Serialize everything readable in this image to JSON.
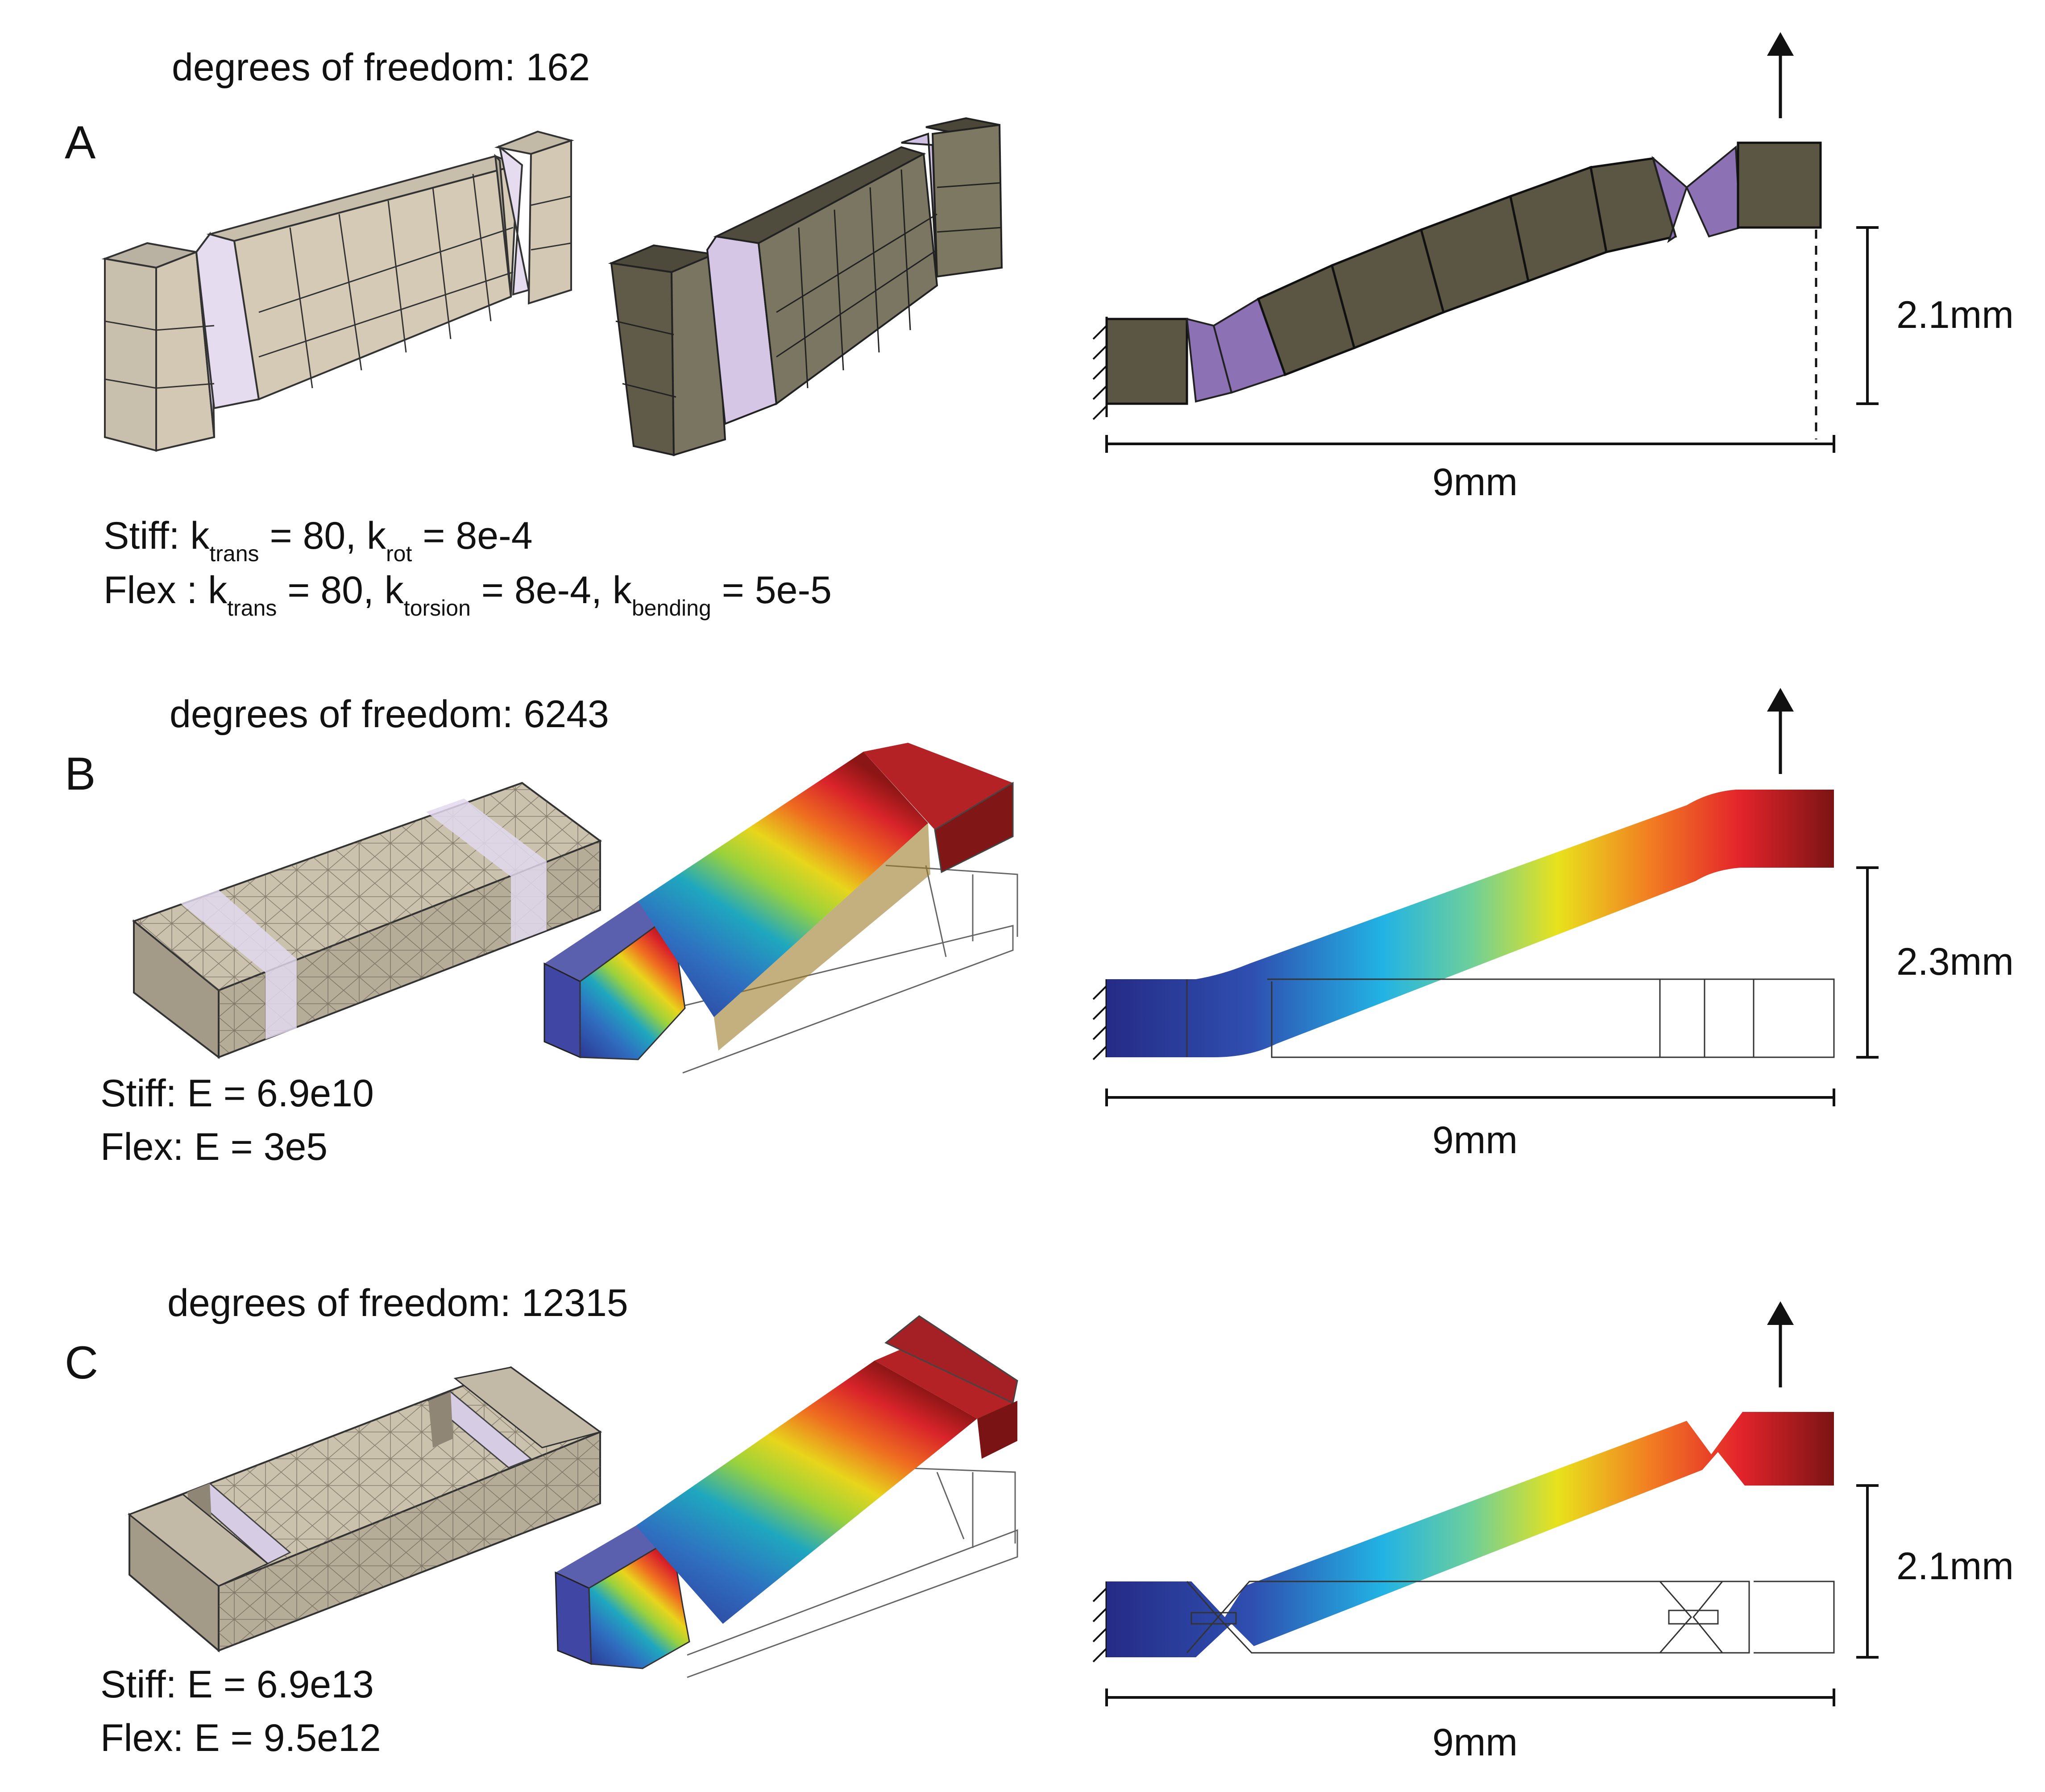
{
  "colors": {
    "stiff_light": "#d2c8b4",
    "flex_light": "#e5dcef",
    "stiff_dark": "#67634e",
    "flex_dark": "#8c72b4",
    "fem_low": "#2a2f8e",
    "fem_high": "#7a1414"
  },
  "panels": [
    {
      "letter": "A",
      "dof": "degrees of freedom: 162",
      "stiff": {
        "prefix": "Stiff: k",
        "sub1": "trans",
        "mid1": " = 80, k",
        "sub2": "rot",
        "mid2": " = 8e-4"
      },
      "flex": {
        "prefix": "Flex : k",
        "sub1": "trans",
        "mid1": " = 80, k",
        "sub2": "torsion",
        "mid2": " = 8e-4, k",
        "sub3": "bending",
        "mid3": " = 5e-5"
      },
      "height_label": "2.1mm",
      "length_label": "9mm"
    },
    {
      "letter": "B",
      "dof": "degrees of freedom: 6243",
      "stiff": "Stiff: E = 6.9e10",
      "flex": "Flex: E = 3e5",
      "height_label": "2.3mm",
      "length_label": "9mm"
    },
    {
      "letter": "C",
      "dof": "degrees of freedom: 12315",
      "stiff": "Stiff: E = 6.9e13",
      "flex": "Flex: E = 9.5e12",
      "height_label": "2.1mm",
      "length_label": "9mm"
    }
  ]
}
